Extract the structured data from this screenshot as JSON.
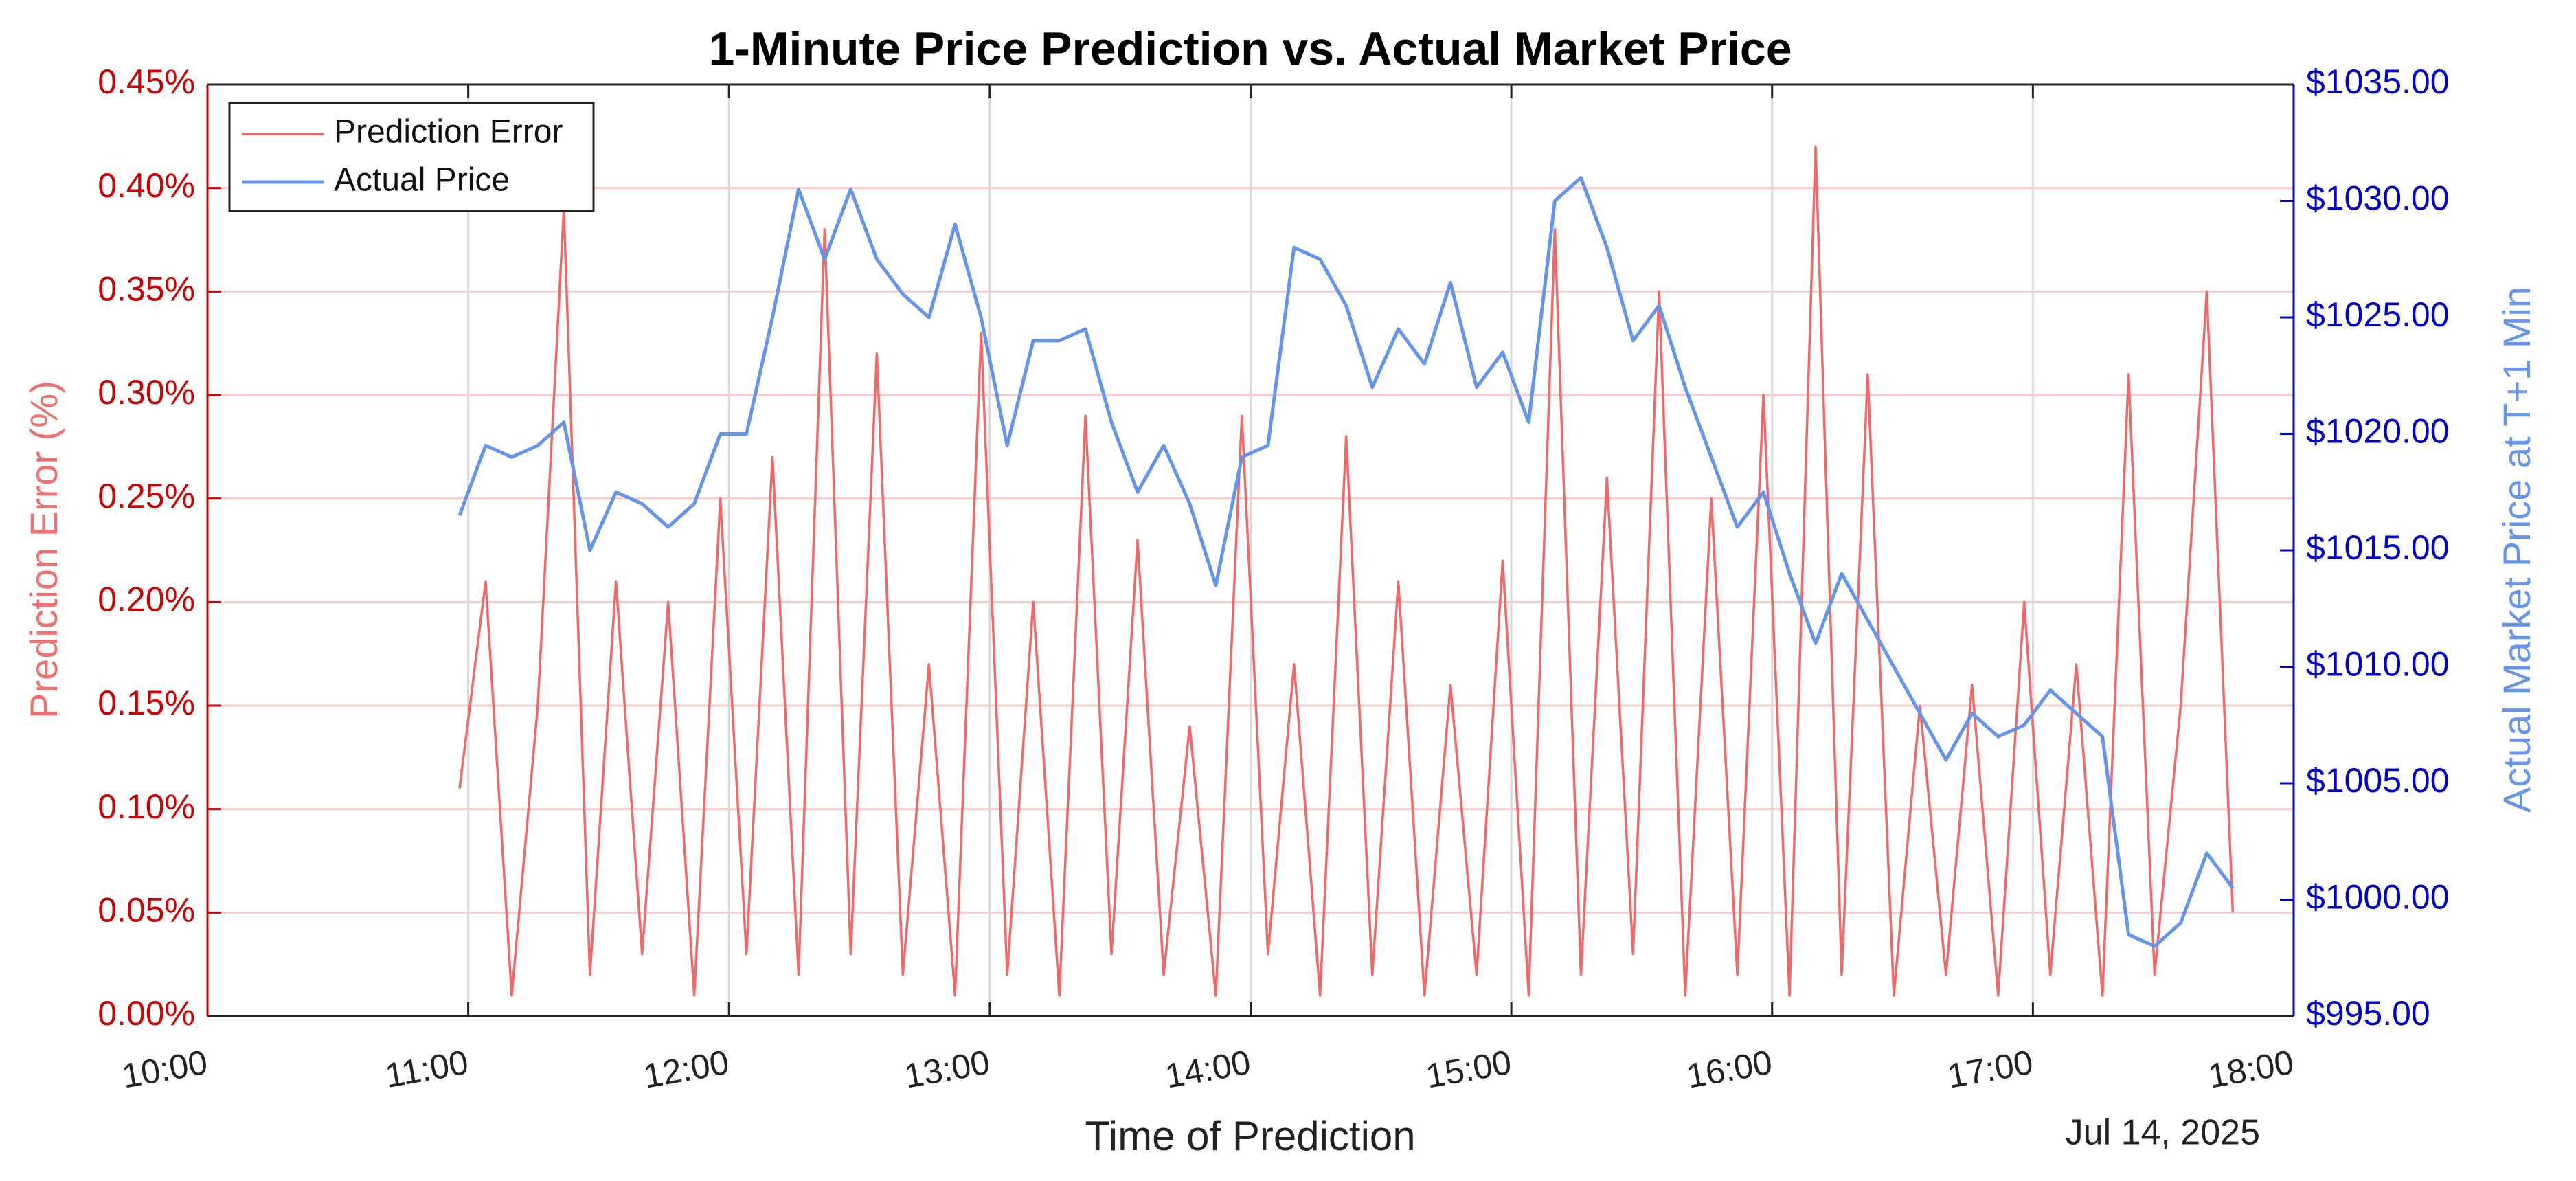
{
  "chart_data": {
    "type": "line",
    "title": "1-Minute Price Prediction vs. Actual Market Price",
    "x_label": "Time of Prediction",
    "x_date_label": "Jul 14, 2025",
    "y_label": "Prediction Error (%)",
    "y2_label": "Actual Market Price at T+1 Min",
    "x": [
      "10:58",
      "11:04",
      "11:10",
      "11:16",
      "11:22",
      "11:28",
      "11:34",
      "11:40",
      "11:46",
      "11:52",
      "11:58",
      "12:04",
      "12:10",
      "12:16",
      "12:22",
      "12:28",
      "12:34",
      "12:40",
      "12:46",
      "12:52",
      "12:58",
      "13:04",
      "13:10",
      "13:16",
      "13:22",
      "13:28",
      "13:34",
      "13:40",
      "13:46",
      "13:52",
      "13:58",
      "14:04",
      "14:10",
      "14:16",
      "14:22",
      "14:28",
      "14:34",
      "14:40",
      "14:46",
      "14:52",
      "14:58",
      "15:04",
      "15:10",
      "15:16",
      "15:22",
      "15:28",
      "15:34",
      "15:40",
      "15:46",
      "15:52",
      "15:58",
      "16:04",
      "16:10",
      "16:16",
      "16:22",
      "16:28",
      "16:34",
      "16:40",
      "16:46",
      "16:52",
      "16:58",
      "17:04",
      "17:10",
      "17:16",
      "17:22",
      "17:28",
      "17:34",
      "17:40",
      "17:46"
    ],
    "series": [
      {
        "name": "Prediction Error",
        "color": "#f06868",
        "axis": "y",
        "values": [
          0.11,
          0.21,
          0.01,
          0.15,
          0.39,
          0.02,
          0.21,
          0.03,
          0.2,
          0.01,
          0.25,
          0.03,
          0.27,
          0.02,
          0.38,
          0.03,
          0.32,
          0.02,
          0.17,
          0.01,
          0.33,
          0.02,
          0.2,
          0.01,
          0.29,
          0.03,
          0.23,
          0.02,
          0.14,
          0.01,
          0.29,
          0.03,
          0.17,
          0.01,
          0.28,
          0.02,
          0.21,
          0.01,
          0.16,
          0.02,
          0.22,
          0.01,
          0.38,
          0.02,
          0.26,
          0.03,
          0.35,
          0.01,
          0.25,
          0.02,
          0.3,
          0.01,
          0.42,
          0.02,
          0.31,
          0.01,
          0.15,
          0.02,
          0.16,
          0.01,
          0.2,
          0.02,
          0.17,
          0.01,
          0.31,
          0.02,
          0.15,
          0.35,
          0.05
        ]
      },
      {
        "name": "Actual Price",
        "color": "#6495ed",
        "axis": "y2",
        "values": [
          1016.5,
          1019.5,
          1019,
          1019.5,
          1020.5,
          1015,
          1017.5,
          1017,
          1016,
          1017,
          1020,
          1020,
          1025,
          1030.5,
          1027.5,
          1030.5,
          1027.5,
          1026,
          1025,
          1029,
          1025,
          1019.5,
          1024,
          1024,
          1024.5,
          1020.5,
          1017.5,
          1019.5,
          1017,
          1013.5,
          1019,
          1019.5,
          1028,
          1027.5,
          1025.5,
          1022,
          1024.5,
          1023,
          1026.5,
          1022,
          1023.5,
          1020.5,
          1030,
          1031,
          1028,
          1024,
          1025.5,
          1022,
          1019,
          1016,
          1017.5,
          1014,
          1011,
          1014,
          1012,
          1010,
          1008,
          1006,
          1008,
          1007,
          1007.5,
          1009,
          1008,
          1007,
          998.5,
          998,
          999,
          1002,
          1000.5
        ]
      }
    ],
    "xlim": [
      "10:00",
      "18:00"
    ],
    "xticks": [
      "10:00",
      "11:00",
      "12:00",
      "13:00",
      "14:00",
      "15:00",
      "16:00",
      "17:00",
      "18:00"
    ],
    "ylim": [
      0,
      0.45
    ],
    "yticks": [
      {
        "value": 0,
        "label": "0.00%"
      },
      {
        "value": 0.05,
        "label": "0.05%"
      },
      {
        "value": 0.1,
        "label": "0.10%"
      },
      {
        "value": 0.15,
        "label": "0.15%"
      },
      {
        "value": 0.2,
        "label": "0.20%"
      },
      {
        "value": 0.25,
        "label": "0.25%"
      },
      {
        "value": 0.3,
        "label": "0.30%"
      },
      {
        "value": 0.35,
        "label": "0.35%"
      },
      {
        "value": 0.4,
        "label": "0.40%"
      },
      {
        "value": 0.45,
        "label": "0.45%"
      }
    ],
    "y2lim": [
      995,
      1035
    ],
    "y2ticks": [
      {
        "value": 995,
        "label": "$995.00"
      },
      {
        "value": 1000,
        "label": "$1000.00"
      },
      {
        "value": 1005,
        "label": "$1005.00"
      },
      {
        "value": 1010,
        "label": "$1010.00"
      },
      {
        "value": 1015,
        "label": "$1015.00"
      },
      {
        "value": 1020,
        "label": "$1020.00"
      },
      {
        "value": 1025,
        "label": "$1025.00"
      },
      {
        "value": 1030,
        "label": "$1030.00"
      },
      {
        "value": 1035,
        "label": "$1035.00"
      }
    ],
    "grid": true,
    "legend": "upper left"
  }
}
